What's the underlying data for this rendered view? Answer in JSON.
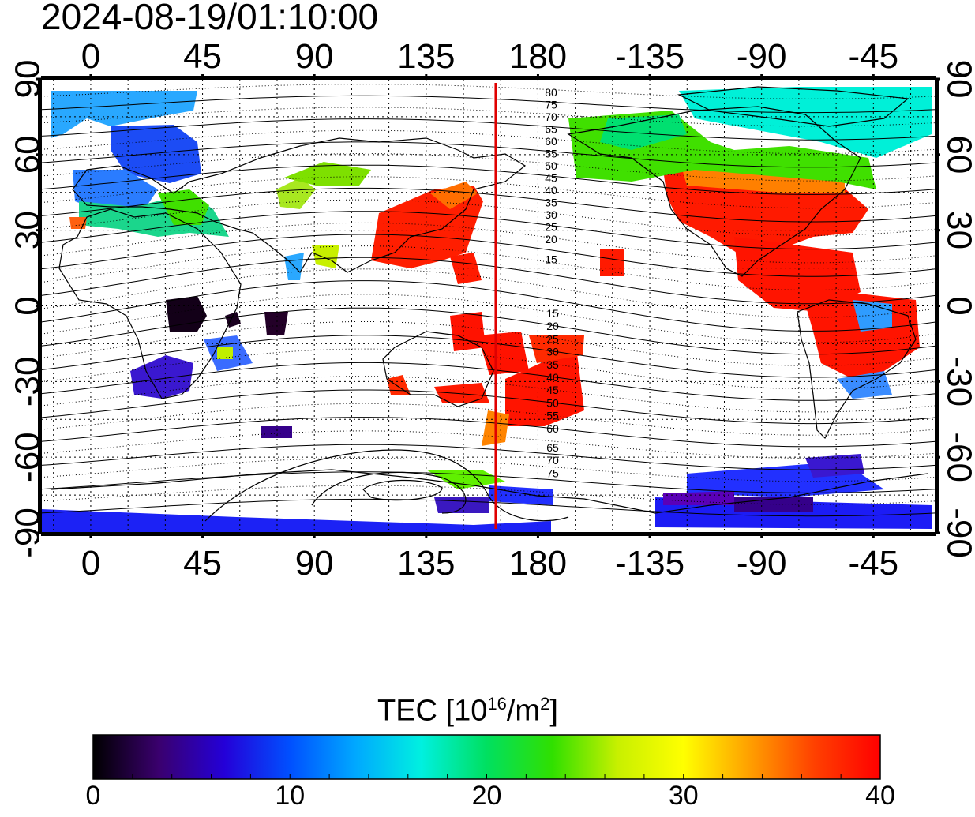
{
  "timestamp": "2024-08-19/01:10:00",
  "map": {
    "x_ticks_top": [
      "0",
      "45",
      "90",
      "135",
      "180",
      "-135",
      "-90",
      "-45"
    ],
    "x_ticks_bottom": [
      "0",
      "45",
      "90",
      "135",
      "180",
      "-135",
      "-90",
      "-45"
    ],
    "y_ticks_left": [
      "90",
      "60",
      "30",
      "0",
      "-30",
      "-60",
      "-90"
    ],
    "y_ticks_right": [
      "90",
      "60",
      "30",
      "0",
      "-30",
      "-60",
      "-90"
    ],
    "x_tick_values": [
      0,
      45,
      90,
      135,
      180,
      -135,
      -90,
      -45
    ],
    "y_tick_values": [
      90,
      60,
      30,
      0,
      -30,
      -60,
      -90
    ],
    "lon_range": [
      -20,
      340
    ],
    "lat_range": [
      -90,
      90
    ],
    "meridian_line_lon": 163,
    "meridian_line_color": "#e00000",
    "contour_labels_north": [
      "80",
      "75",
      "70",
      "65",
      "60",
      "55",
      "50",
      "45",
      "40",
      "35",
      "30",
      "25",
      "20",
      "15"
    ],
    "contour_labels_south": [
      "15",
      "20",
      "25",
      "30",
      "35",
      "40",
      "45",
      "50",
      "55",
      "60",
      "65",
      "70",
      "75"
    ]
  },
  "colorbar": {
    "title_prefix": "TEC  [10",
    "title_exp1": "16",
    "title_mid": "/m",
    "title_exp2": "2",
    "title_suffix": "]",
    "min": 0,
    "max": 40,
    "tick_labels": [
      "0",
      "10",
      "20",
      "30",
      "40"
    ],
    "colors": [
      "#000000",
      "#3a006e",
      "#2400d8",
      "#0050ff",
      "#00a8ff",
      "#00f0e0",
      "#00e060",
      "#30e000",
      "#c8f000",
      "#ffff00",
      "#ffa000",
      "#ff4000",
      "#ff0000"
    ]
  }
}
